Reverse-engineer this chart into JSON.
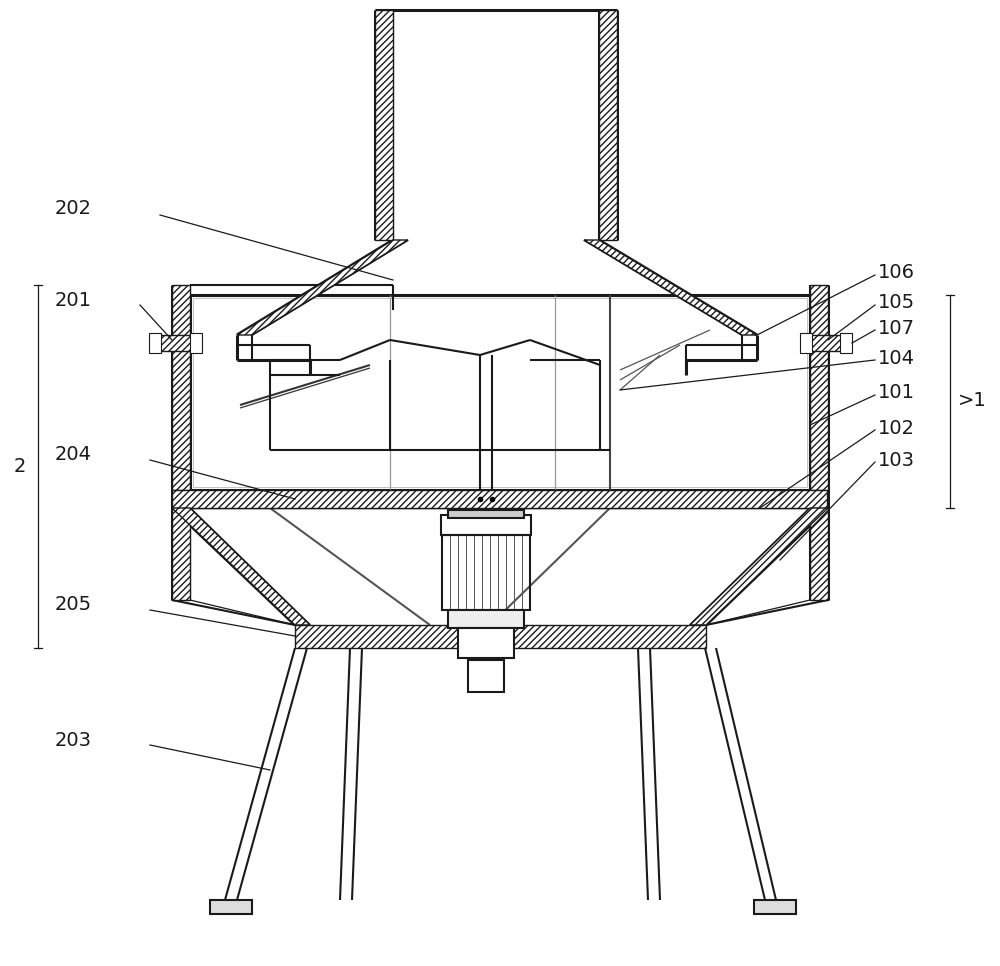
{
  "bg_color": "#ffffff",
  "line_color": "#1a1a1a",
  "lw": 1.5,
  "lw_thick": 2.2,
  "lw_thin": 0.9,
  "label_fs": 14
}
